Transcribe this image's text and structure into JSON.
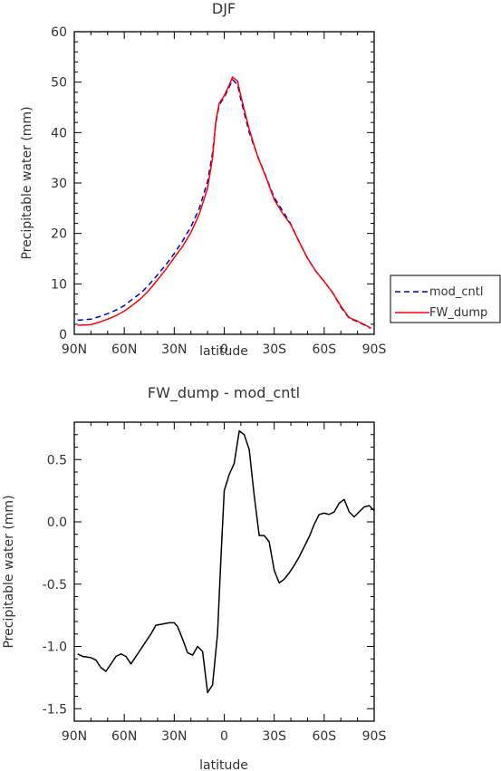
{
  "chart_data": [
    {
      "type": "line",
      "title": "DJF",
      "xlabel": "latitude",
      "ylabel": "Precipitable water (mm)",
      "xlim": [
        -90,
        90
      ],
      "ylim": [
        0,
        60
      ],
      "x_ticks": [
        -90,
        -60,
        -30,
        0,
        30,
        60,
        90
      ],
      "x_tick_labels": [
        "90N",
        "60N",
        "30N",
        "0",
        "30S",
        "60S",
        "90S"
      ],
      "y_ticks": [
        0,
        10,
        20,
        30,
        40,
        50,
        60
      ],
      "y_tick_labels": [
        "0",
        "10",
        "20",
        "30",
        "40",
        "50",
        "60"
      ],
      "legend_position": "right",
      "series": [
        {
          "name": "mod_cntl",
          "color": "#0000cc",
          "style": "dashed",
          "x": [
            -88,
            -80,
            -75,
            -70,
            -65,
            -60,
            -55,
            -50,
            -45,
            -40,
            -35,
            -30,
            -25,
            -20,
            -15,
            -10,
            -7,
            -5,
            -3,
            0,
            3,
            5,
            8,
            10,
            15,
            20,
            25,
            30,
            35,
            40,
            45,
            50,
            55,
            60,
            65,
            70,
            75,
            80,
            85,
            88
          ],
          "y": [
            2.8,
            3.0,
            3.5,
            4.1,
            4.8,
            5.7,
            7.0,
            8.2,
            9.9,
            11.8,
            13.8,
            16.0,
            18.5,
            21.3,
            24.9,
            30.3,
            36.0,
            42.0,
            45.5,
            47.0,
            49.0,
            50.5,
            49.5,
            46.5,
            40.0,
            35.4,
            31.3,
            27.1,
            24.5,
            21.8,
            18.3,
            15.1,
            12.5,
            10.5,
            8.3,
            5.4,
            3.2,
            2.5,
            1.7,
            1.2
          ]
        },
        {
          "name": "FW_dump",
          "color": "#ff0000",
          "style": "solid",
          "x": [
            -88,
            -80,
            -75,
            -70,
            -65,
            -60,
            -55,
            -50,
            -45,
            -40,
            -35,
            -30,
            -25,
            -20,
            -15,
            -10,
            -7,
            -5,
            -3,
            0,
            3,
            5,
            8,
            10,
            15,
            20,
            25,
            30,
            35,
            40,
            45,
            50,
            55,
            60,
            65,
            70,
            75,
            80,
            85,
            88
          ],
          "y": [
            1.8,
            1.9,
            2.4,
            3.0,
            3.7,
            4.6,
            5.8,
            7.1,
            8.8,
            10.8,
            12.9,
            15.2,
            17.4,
            20.2,
            23.8,
            29.0,
            35.0,
            42.3,
            45.8,
            47.3,
            49.4,
            51.0,
            50.2,
            47.2,
            40.6,
            35.3,
            31.2,
            26.7,
            24.0,
            21.7,
            18.3,
            15.1,
            12.5,
            10.5,
            8.3,
            5.6,
            3.3,
            2.6,
            1.8,
            1.2
          ]
        }
      ]
    },
    {
      "type": "line",
      "title": "FW_dump - mod_cntl",
      "xlabel": "latitude",
      "ylabel": "Precipitable water (mm)",
      "xlim": [
        -90,
        90
      ],
      "ylim": [
        -1.6,
        0.8
      ],
      "x_ticks": [
        -90,
        -60,
        -30,
        0,
        30,
        60,
        90
      ],
      "x_tick_labels": [
        "90N",
        "60N",
        "30N",
        "0",
        "30S",
        "60S",
        "90S"
      ],
      "y_ticks": [
        -1.5,
        -1.0,
        -0.5,
        0.0,
        0.5
      ],
      "y_tick_labels": [
        "-1.5",
        "-1.0",
        "-0.5",
        "0.0",
        "0.5"
      ],
      "series": [
        {
          "color": "#000000",
          "style": "solid",
          "x": [
            -88,
            -85,
            -80,
            -77,
            -74,
            -71,
            -68,
            -65,
            -62,
            -59,
            -56,
            -52,
            -48,
            -44,
            -41,
            -37,
            -33,
            -30,
            -28,
            -25,
            -22,
            -19,
            -16,
            -13,
            -10,
            -7,
            -4,
            -2,
            0,
            3,
            6,
            9,
            12,
            15,
            18,
            21,
            24,
            27,
            30,
            33,
            36,
            39,
            42,
            45,
            48,
            51,
            54,
            57,
            60,
            63,
            66,
            69,
            72,
            75,
            78,
            81,
            84,
            87,
            90
          ],
          "y": [
            -1.06,
            -1.08,
            -1.09,
            -1.11,
            -1.17,
            -1.2,
            -1.14,
            -1.08,
            -1.06,
            -1.08,
            -1.14,
            -1.06,
            -0.98,
            -0.9,
            -0.83,
            -0.82,
            -0.81,
            -0.81,
            -0.84,
            -0.94,
            -1.05,
            -1.07,
            -1.0,
            -1.04,
            -1.37,
            -1.31,
            -0.9,
            -0.3,
            0.25,
            0.38,
            0.47,
            0.73,
            0.7,
            0.58,
            0.21,
            -0.11,
            -0.11,
            -0.16,
            -0.39,
            -0.49,
            -0.46,
            -0.41,
            -0.35,
            -0.28,
            -0.2,
            -0.12,
            -0.02,
            0.06,
            0.07,
            0.06,
            0.08,
            0.15,
            0.18,
            0.08,
            0.04,
            0.08,
            0.12,
            0.13,
            0.09
          ]
        }
      ]
    }
  ]
}
